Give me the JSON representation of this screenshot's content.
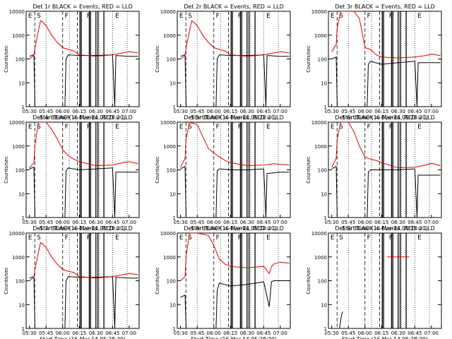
{
  "colors": {
    "events": "#000000",
    "lld": "#dd0000",
    "axes": "#000000"
  },
  "shared": {
    "xlabel": "Start Time (16-Mar-14 05:28:20)",
    "ylabel": "Counts/sec",
    "xticks": [
      "05:30",
      "05:45",
      "06:00",
      "06:15",
      "06:30",
      "06:45",
      "07:00"
    ],
    "yticks": [
      "1",
      "10",
      "100",
      "1000",
      "10000"
    ],
    "scale": "log",
    "x_range_hours": [
      5.45,
      7.15
    ],
    "y_range_counts": [
      1,
      10000
    ],
    "time_axis_start_hour": 5.45
  },
  "chart_data": [
    {
      "type": "line",
      "title": "Det 1r BLACK = Events, RED = LLD",
      "flags": [
        "E",
        "S",
        "F",
        "F",
        "E"
      ],
      "series": [
        {
          "name": "Events",
          "x": [
            "05:30",
            "05:34",
            "05:35",
            "05:37",
            "05:45",
            "06:00",
            "06:02",
            "06:03",
            "06:05",
            "06:15",
            "06:30",
            "06:45",
            "06:47",
            "06:48",
            "07:00",
            "07:08"
          ],
          "y": [
            130,
            150,
            1,
            1,
            1,
            1,
            1,
            100,
            150,
            140,
            140,
            150,
            1,
            140,
            130,
            130
          ]
        },
        {
          "name": "LLD",
          "x": [
            "05:30",
            "05:34",
            "05:35",
            "05:38",
            "05:40",
            "05:42",
            "05:45",
            "05:50",
            "05:55",
            "06:00",
            "06:05",
            "06:10",
            "06:15",
            "06:30",
            "06:45",
            "07:00",
            "07:08"
          ],
          "y": [
            100,
            140,
            300,
            1500,
            4000,
            3500,
            2500,
            1000,
            500,
            300,
            250,
            220,
            150,
            130,
            150,
            200,
            180
          ]
        }
      ]
    },
    {
      "type": "line",
      "title": "Det 2r BLACK = Events, RED = LLD",
      "flags": [
        "E",
        "S",
        "F",
        "F",
        "E"
      ],
      "series": [
        {
          "name": "Events",
          "x": [
            "05:30",
            "05:34",
            "05:35",
            "05:37",
            "05:45",
            "06:00",
            "06:02",
            "06:03",
            "06:05",
            "06:15",
            "06:30",
            "06:45",
            "06:47",
            "06:48",
            "07:00",
            "07:08"
          ],
          "y": [
            130,
            150,
            1,
            1,
            1,
            1,
            1,
            100,
            150,
            140,
            140,
            150,
            1,
            140,
            130,
            130
          ]
        },
        {
          "name": "LLD",
          "x": [
            "05:30",
            "05:34",
            "05:35",
            "05:38",
            "05:40",
            "05:42",
            "05:45",
            "05:50",
            "05:55",
            "06:00",
            "06:05",
            "06:10",
            "06:15",
            "06:30",
            "06:45",
            "07:00",
            "07:08"
          ],
          "y": [
            100,
            140,
            300,
            1500,
            4000,
            3500,
            2500,
            1000,
            500,
            300,
            250,
            220,
            150,
            130,
            150,
            200,
            180
          ]
        }
      ]
    },
    {
      "type": "line",
      "title": "Det 3r BLACK = Events, RED = LLD",
      "flags": [
        "E",
        "S",
        "F",
        "F",
        "E"
      ],
      "series": [
        {
          "name": "Events",
          "x": [
            "05:30",
            "05:34",
            "05:35",
            "05:37",
            "05:45",
            "06:00",
            "06:02",
            "06:03",
            "06:05",
            "06:15",
            "06:30",
            "06:45",
            "06:47",
            "06:48",
            "07:00",
            "07:08"
          ],
          "y": [
            100,
            120,
            1,
            1,
            1,
            1,
            1,
            60,
            80,
            60,
            70,
            80,
            1,
            70,
            70,
            70
          ]
        },
        {
          "name": "LLD",
          "x": [
            "05:30",
            "05:34",
            "05:35",
            "05:38",
            "05:45",
            "05:50",
            "05:55",
            "06:00",
            "06:05",
            "06:10",
            "06:15",
            "06:30",
            "06:45",
            "06:55",
            "07:00",
            "07:08"
          ],
          "y": [
            200,
            400,
            2000,
            10000,
            10000,
            10000,
            5000,
            300,
            250,
            150,
            120,
            110,
            120,
            140,
            160,
            140
          ]
        }
      ]
    },
    {
      "type": "line",
      "title": "Det 4r BLACK = Events, RED = LLD",
      "flags": [
        "E",
        "S",
        "F",
        "F",
        "E"
      ],
      "series": [
        {
          "name": "Events",
          "x": [
            "05:30",
            "05:34",
            "05:35",
            "05:37",
            "05:45",
            "06:00",
            "06:02",
            "06:03",
            "06:05",
            "06:15",
            "06:30",
            "06:45",
            "06:47",
            "06:48",
            "07:00",
            "07:08"
          ],
          "y": [
            110,
            130,
            1,
            1,
            1,
            1,
            1,
            90,
            120,
            100,
            110,
            120,
            1,
            80,
            80,
            80
          ]
        },
        {
          "name": "LLD",
          "x": [
            "05:30",
            "05:34",
            "05:35",
            "05:38",
            "05:45",
            "05:50",
            "05:55",
            "06:00",
            "06:05",
            "06:10",
            "06:15",
            "06:30",
            "06:45",
            "06:55",
            "07:00",
            "07:08"
          ],
          "y": [
            120,
            200,
            1000,
            10000,
            10000,
            5000,
            2000,
            700,
            400,
            280,
            220,
            150,
            160,
            200,
            220,
            180
          ]
        }
      ]
    },
    {
      "type": "line",
      "title": "Det 5r BLACK = Events, RED = LLD",
      "flags": [
        "E",
        "S",
        "F",
        "F",
        "E"
      ],
      "series": [
        {
          "name": "Events",
          "x": [
            "05:30",
            "05:34",
            "05:35",
            "05:37",
            "05:45",
            "06:00",
            "06:02",
            "06:03",
            "06:05",
            "06:15",
            "06:30",
            "06:45",
            "06:47",
            "06:48",
            "07:00",
            "07:08"
          ],
          "y": [
            110,
            140,
            1,
            1,
            1,
            1,
            1,
            90,
            110,
            100,
            100,
            110,
            1,
            70,
            80,
            80
          ]
        },
        {
          "name": "LLD",
          "x": [
            "05:30",
            "05:34",
            "05:35",
            "05:38",
            "05:45",
            "05:50",
            "05:55",
            "06:00",
            "06:05",
            "06:10",
            "06:15",
            "06:30",
            "06:45",
            "06:55",
            "07:00",
            "07:08"
          ],
          "y": [
            130,
            300,
            2000,
            10000,
            8000,
            2500,
            800,
            500,
            350,
            250,
            200,
            150,
            160,
            180,
            170,
            160
          ]
        }
      ]
    },
    {
      "type": "line",
      "title": "Det 6r BLACK = Events, RED = LLD",
      "flags": [
        "E",
        "S",
        "F",
        "F",
        "E"
      ],
      "series": [
        {
          "name": "Events",
          "x": [
            "05:30",
            "05:34",
            "05:35",
            "05:37",
            "05:45",
            "06:00",
            "06:02",
            "06:03",
            "06:05",
            "06:15",
            "06:30",
            "06:45",
            "06:47",
            "06:48",
            "07:00",
            "07:08"
          ],
          "y": [
            110,
            140,
            1,
            1,
            1,
            1,
            1,
            80,
            100,
            100,
            100,
            110,
            1,
            60,
            60,
            60
          ]
        },
        {
          "name": "LLD",
          "x": [
            "05:30",
            "05:34",
            "05:35",
            "05:38",
            "05:45",
            "05:50",
            "05:55",
            "06:00",
            "06:05",
            "06:10",
            "06:15",
            "06:30",
            "06:45",
            "06:55",
            "07:00",
            "07:08"
          ],
          "y": [
            130,
            300,
            2000,
            10000,
            10000,
            4000,
            1000,
            350,
            280,
            250,
            200,
            120,
            130,
            160,
            190,
            150
          ]
        }
      ]
    },
    {
      "type": "line",
      "title": "Det 7r BLACK = Events, RED = LLD",
      "flags": [
        "E",
        "S",
        "F",
        "F",
        "E"
      ],
      "series": [
        {
          "name": "Events",
          "x": [
            "05:30",
            "05:34",
            "05:35",
            "05:37",
            "05:45",
            "06:00",
            "06:02",
            "06:03",
            "06:05",
            "06:15",
            "06:30",
            "06:45",
            "06:47",
            "06:48",
            "07:00",
            "07:08"
          ],
          "y": [
            130,
            150,
            1,
            1,
            1,
            1,
            1,
            100,
            150,
            140,
            140,
            150,
            1,
            140,
            130,
            130
          ]
        },
        {
          "name": "LLD",
          "x": [
            "05:30",
            "05:34",
            "05:35",
            "05:38",
            "05:40",
            "05:42",
            "05:45",
            "05:50",
            "05:55",
            "06:00",
            "06:05",
            "06:10",
            "06:15",
            "06:30",
            "06:45",
            "07:00",
            "07:08"
          ],
          "y": [
            100,
            140,
            300,
            1500,
            4000,
            3500,
            2500,
            1000,
            500,
            300,
            250,
            220,
            150,
            130,
            150,
            200,
            180
          ]
        }
      ]
    },
    {
      "type": "line",
      "title": "Det 8r BLACK = Events, RED = LLD",
      "flags": [
        "E",
        "S",
        "F",
        "F",
        "E"
      ],
      "series": [
        {
          "name": "Events",
          "x": [
            "05:30",
            "05:34",
            "05:35",
            "05:37",
            "05:45",
            "06:00",
            "06:02",
            "06:03",
            "06:05",
            "06:15",
            "06:30",
            "06:45",
            "06:50",
            "06:52",
            "06:54",
            "07:00",
            "07:08"
          ],
          "y": [
            20,
            25,
            1,
            1,
            1,
            1,
            1,
            40,
            80,
            60,
            70,
            90,
            8,
            90,
            100,
            100,
            100
          ]
        },
        {
          "name": "LLD",
          "x": [
            "05:30",
            "05:34",
            "05:35",
            "05:38",
            "05:45",
            "05:55",
            "06:00",
            "06:05",
            "06:10",
            "06:15",
            "06:30",
            "06:45",
            "06:50",
            "06:52",
            "06:54",
            "07:00",
            "07:08"
          ],
          "y": [
            100,
            150,
            1000,
            10000,
            10000,
            8000,
            3000,
            800,
            500,
            400,
            350,
            400,
            200,
            380,
            500,
            600,
            550
          ]
        }
      ]
    },
    {
      "type": "line",
      "title": "Det 9r BLACK = Events, RED = LLD",
      "flags": [
        "E",
        "S",
        "F",
        "F",
        "E"
      ],
      "series": [
        {
          "name": "Events",
          "x": [
            "05:36",
            "05:37",
            "05:38",
            "05:39",
            "05:40"
          ],
          "y": [
            1,
            1,
            2,
            4,
            5
          ]
        },
        {
          "name": "LLD",
          "x": [
            "06:20",
            "06:40"
          ],
          "y": [
            1000,
            1000
          ]
        }
      ]
    }
  ]
}
